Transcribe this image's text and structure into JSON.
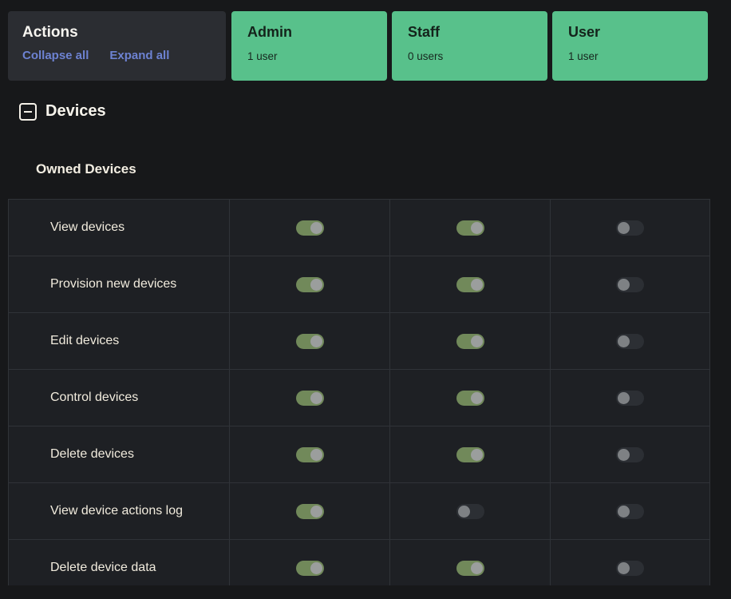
{
  "actions_panel": {
    "title": "Actions",
    "collapse_label": "Collapse all",
    "expand_label": "Expand all"
  },
  "roles": [
    {
      "id": "admin",
      "name": "Admin",
      "count": "1 user"
    },
    {
      "id": "staff",
      "name": "Staff",
      "count": "0 users"
    },
    {
      "id": "user",
      "name": "User",
      "count": "1 user"
    }
  ],
  "section": {
    "title": "Devices",
    "collapse_icon": "minus-square-icon",
    "subsection_title": "Owned Devices"
  },
  "permissions": {
    "columns": [
      "admin",
      "staff",
      "user"
    ],
    "rows": [
      {
        "label": "View devices",
        "admin": true,
        "staff": true,
        "user": false
      },
      {
        "label": "Provision new devices",
        "admin": true,
        "staff": true,
        "user": false
      },
      {
        "label": "Edit devices",
        "admin": true,
        "staff": true,
        "user": false
      },
      {
        "label": "Control devices",
        "admin": true,
        "staff": true,
        "user": false
      },
      {
        "label": "Delete devices",
        "admin": true,
        "staff": true,
        "user": false
      },
      {
        "label": "View device actions log",
        "admin": true,
        "staff": false,
        "user": false
      },
      {
        "label": "Delete device data",
        "admin": true,
        "staff": true,
        "user": false
      }
    ]
  },
  "colors": {
    "page_background": "#17181a",
    "panel_background": "#2b2d32",
    "row_background": "#1e2024",
    "card_green": "#58c18b",
    "link_blue": "#6d82d2",
    "toggle_on_green": "#71895a",
    "toggle_off_track": "#2c2f34"
  }
}
